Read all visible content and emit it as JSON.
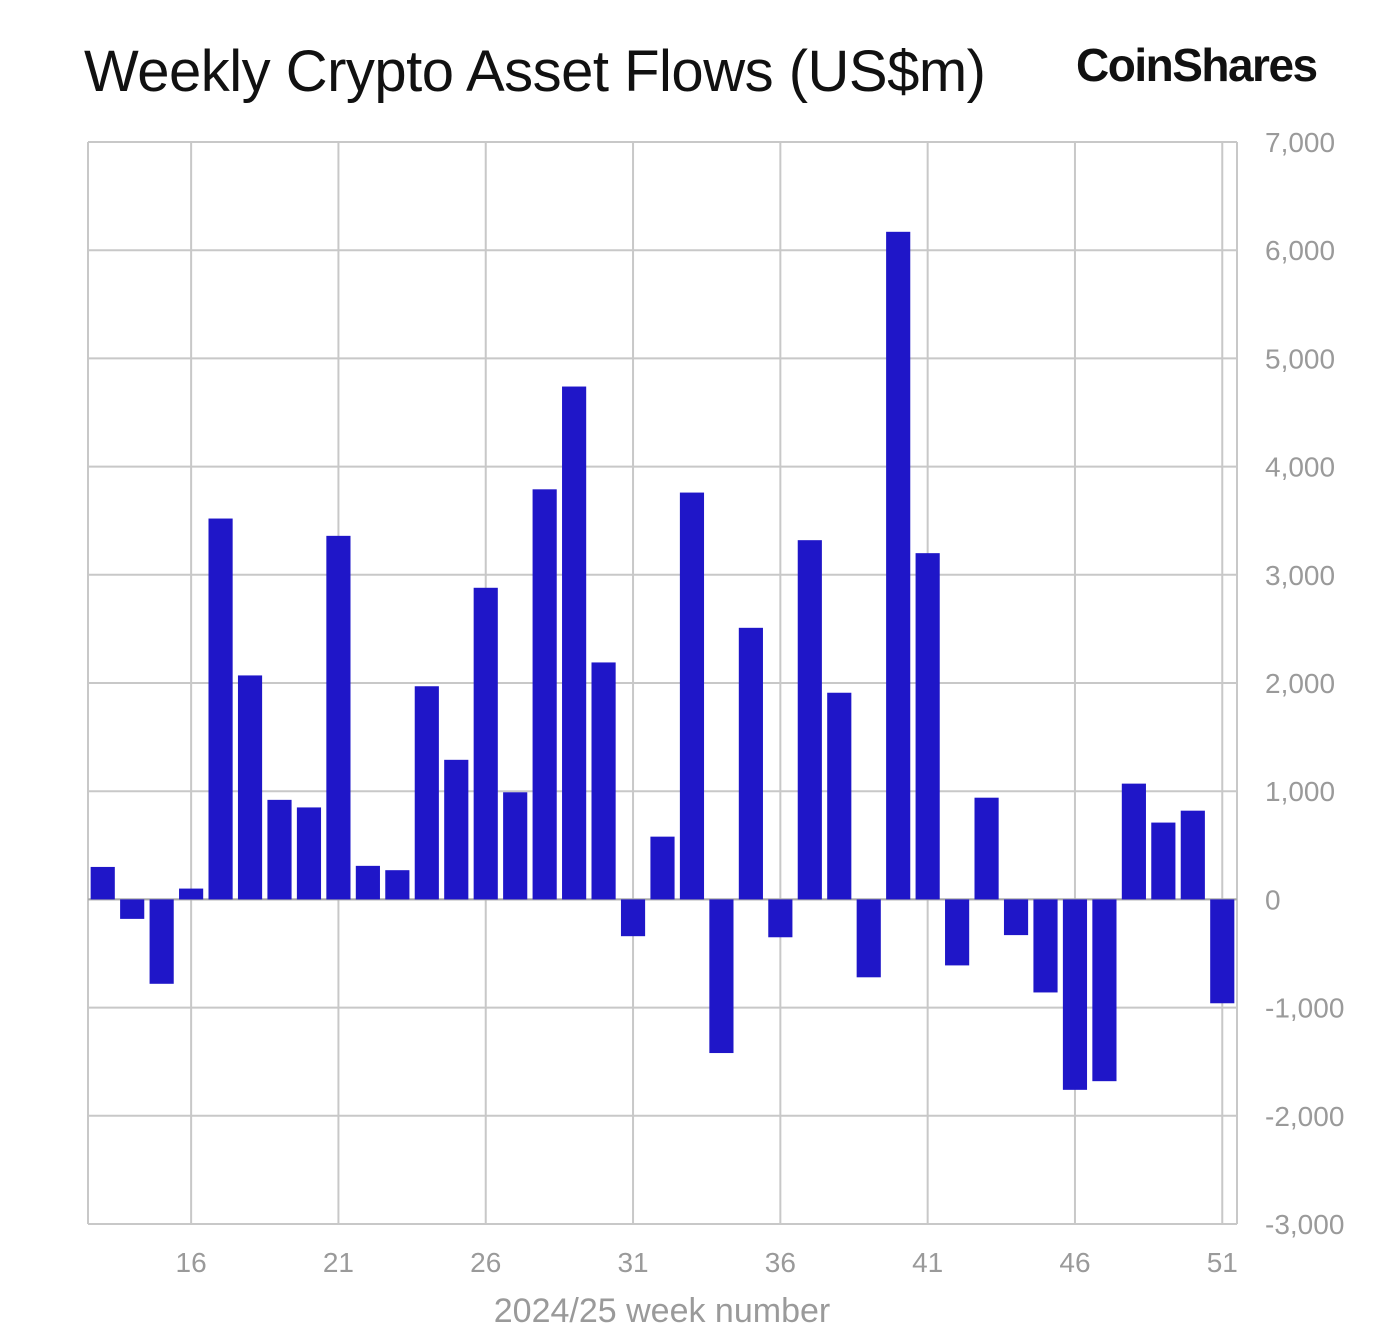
{
  "title": "Weekly Crypto Asset Flows (US$m)",
  "brand": "CoinShares",
  "chart_data": {
    "type": "bar",
    "title": "Weekly Crypto Asset Flows (US$m)",
    "xlabel": "2024/25 week number",
    "ylabel": "",
    "ylim": [
      -3000,
      7000
    ],
    "yticks": [
      7000,
      6000,
      5000,
      4000,
      3000,
      2000,
      1000,
      0,
      -1000,
      -2000,
      -3000
    ],
    "ytick_labels": [
      "7,000",
      "6,000",
      "5,000",
      "4,000",
      "3,000",
      "2,000",
      "1,000",
      "0",
      "-1,000",
      "-2,000",
      "-3,000"
    ],
    "y_axis_side": "right",
    "xtick_labels": [
      "16",
      "21",
      "26",
      "31",
      "36",
      "41",
      "46",
      "51"
    ],
    "grid": true,
    "bar_color": "#1f16c8",
    "categories": [
      13,
      14,
      15,
      16,
      17,
      18,
      19,
      20,
      21,
      22,
      23,
      24,
      25,
      26,
      27,
      28,
      29,
      30,
      31,
      32,
      33,
      34,
      35,
      36,
      37,
      38,
      39,
      40,
      41,
      42,
      43,
      44,
      45,
      46,
      47,
      48,
      49,
      50,
      51
    ],
    "values": [
      300,
      -180,
      -780,
      100,
      3520,
      2070,
      920,
      850,
      3360,
      310,
      270,
      1970,
      1290,
      2880,
      990,
      3790,
      4740,
      2190,
      -340,
      580,
      3760,
      -1420,
      2510,
      -350,
      3320,
      1910,
      -720,
      6170,
      3200,
      -610,
      940,
      -330,
      -860,
      -1760,
      -1680,
      1070,
      710,
      820,
      -960
    ]
  }
}
